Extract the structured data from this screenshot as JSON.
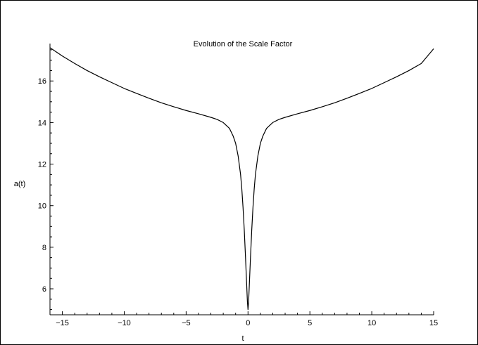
{
  "chart_data": {
    "type": "line",
    "title": "Evolution of the Scale Factor",
    "xlabel": "t",
    "ylabel": "a(t)",
    "xlim": [
      -16.0,
      15.0
    ],
    "ylim": [
      4.75,
      17.8
    ],
    "x_ticks": [
      -15,
      -10,
      -5,
      0,
      5,
      10,
      15
    ],
    "x_tick_labels": [
      "−15",
      "−10",
      "−5",
      "0",
      "5",
      "10",
      "15"
    ],
    "y_ticks": [
      6,
      8,
      10,
      12,
      14,
      16
    ],
    "y_tick_labels": [
      "6",
      "8",
      "10",
      "12",
      "14",
      "16"
    ],
    "grid": false,
    "legend": "none",
    "series": [
      {
        "color": "#000000",
        "x": [
          -16,
          -15,
          -14,
          -13,
          -12,
          -11,
          -10,
          -9,
          -8,
          -7,
          -6,
          -5,
          -4,
          -3,
          -2.5,
          -2,
          -1.5,
          -1.2,
          -1,
          -0.8,
          -0.6,
          -0.5,
          -0.4,
          -0.3,
          -0.2,
          -0.1,
          -0.05,
          0,
          0.05,
          0.1,
          0.2,
          0.3,
          0.4,
          0.5,
          0.6,
          0.8,
          1,
          1.2,
          1.5,
          2,
          2.5,
          3,
          4,
          5,
          6,
          7,
          8,
          9,
          10,
          11,
          12,
          13,
          14,
          15
        ],
        "y": [
          17.6,
          17.2,
          16.84,
          16.5,
          16.2,
          15.92,
          15.64,
          15.4,
          15.17,
          14.95,
          14.76,
          14.58,
          14.42,
          14.25,
          14.15,
          14.0,
          13.72,
          13.35,
          13.0,
          12.4,
          11.5,
          10.8,
          9.9,
          8.8,
          7.5,
          6.1,
          5.4,
          5.0,
          5.4,
          6.1,
          7.5,
          8.8,
          9.9,
          10.8,
          11.5,
          12.4,
          13.0,
          13.35,
          13.72,
          14.0,
          14.15,
          14.25,
          14.42,
          14.58,
          14.76,
          14.95,
          15.17,
          15.4,
          15.64,
          15.92,
          16.2,
          16.5,
          16.84,
          17.55
        ]
      }
    ]
  }
}
